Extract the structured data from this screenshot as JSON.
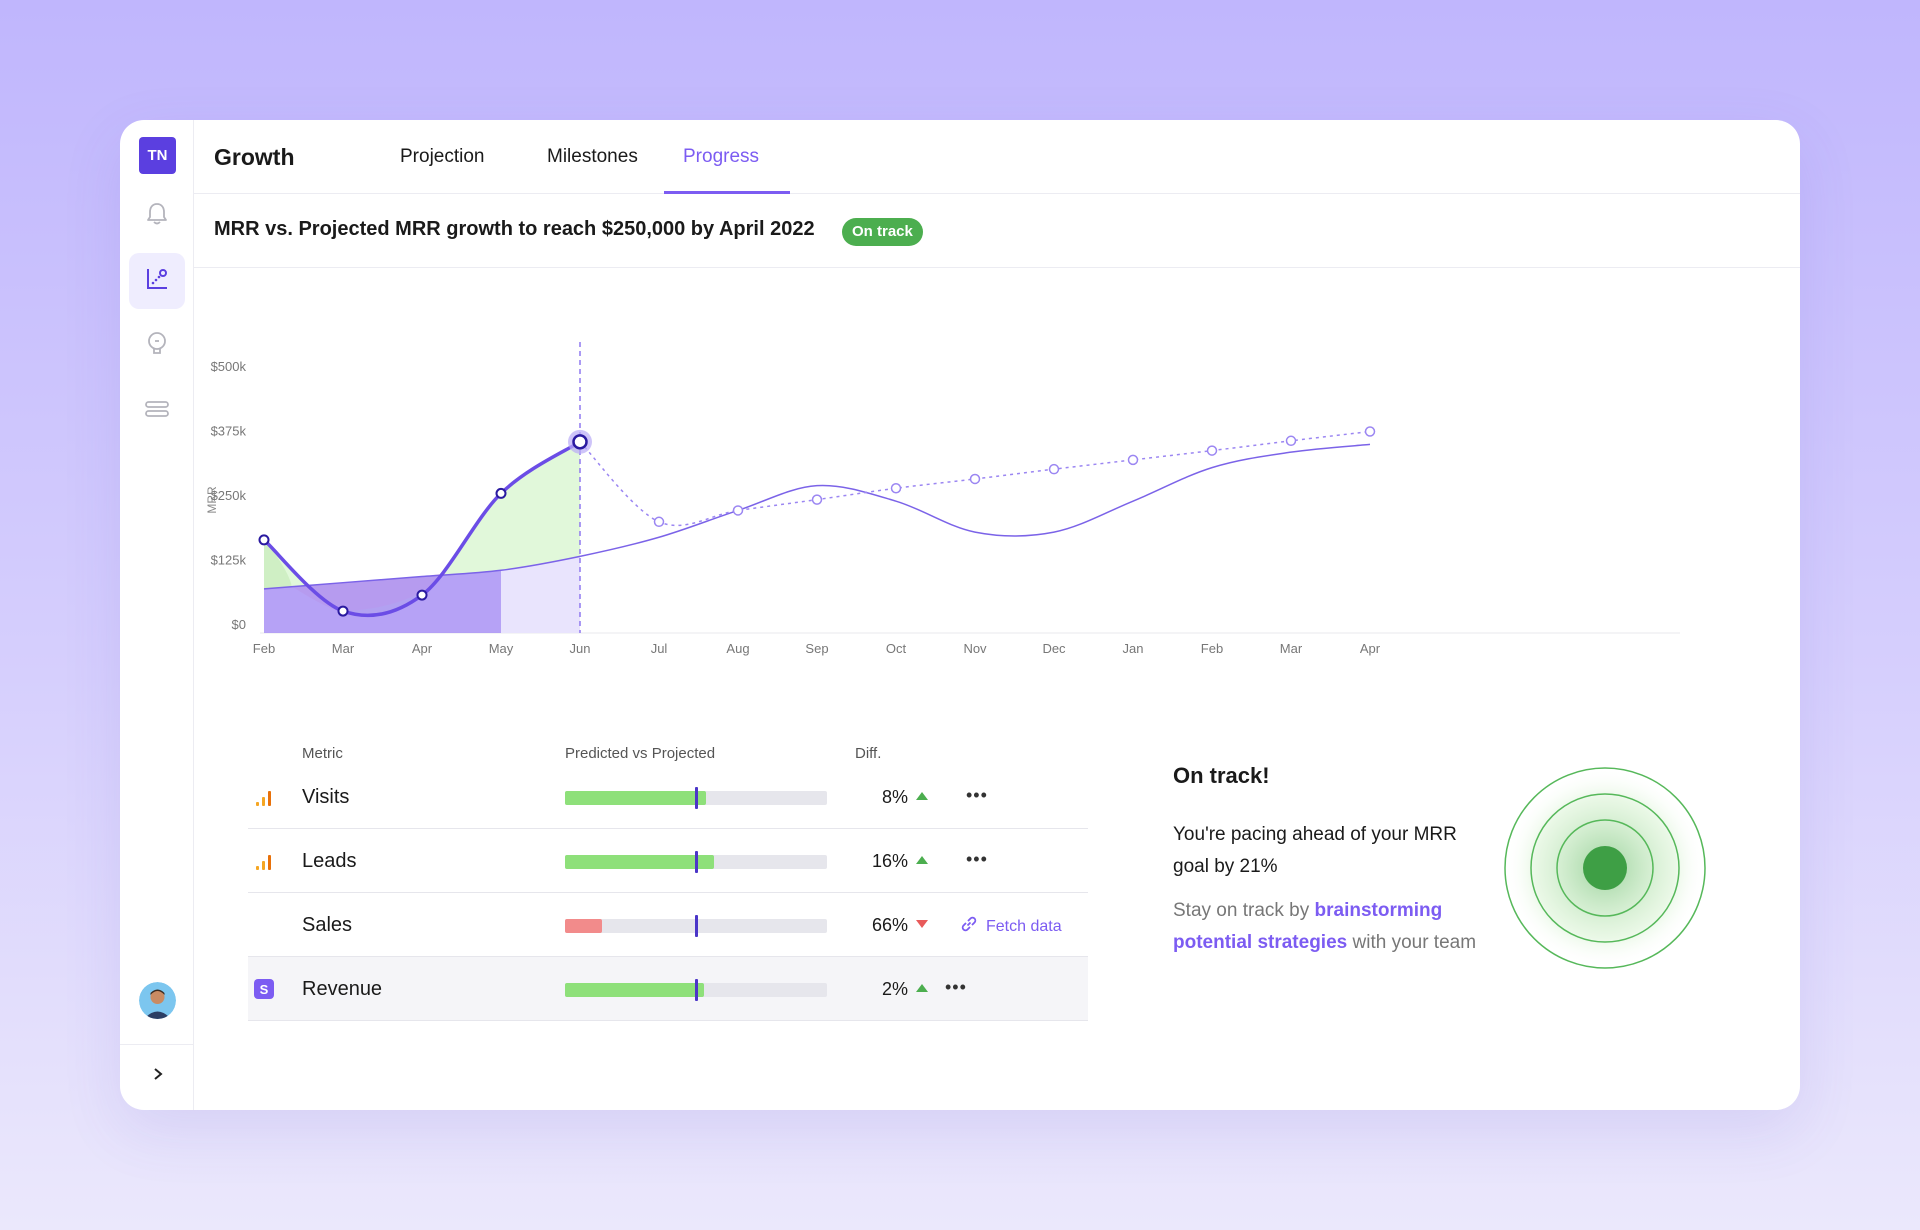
{
  "app": {
    "logo": "TN",
    "title": "Growth",
    "brand_color": "#5b3fe0",
    "accent_color": "#7c5cf2"
  },
  "tabs": [
    {
      "label": "Projection",
      "active": false
    },
    {
      "label": "Milestones",
      "active": false
    },
    {
      "label": "Progress",
      "active": true
    }
  ],
  "rail": {
    "items": [
      {
        "icon": "bell-icon",
        "active": false
      },
      {
        "icon": "chart-icon",
        "active": true
      },
      {
        "icon": "lightbulb-icon",
        "active": false
      },
      {
        "icon": "list-icon",
        "active": false
      }
    ],
    "avatar": "avatar",
    "expand_icon": "chevron-right-icon"
  },
  "header": {
    "title": "MRR vs. Projected MRR growth to reach $250,000 by April 2022",
    "badge": "On track",
    "badge_color": "#4cae4f"
  },
  "chart_data": {
    "type": "line",
    "ylabel": "MRR",
    "ylim": [
      0,
      500000
    ],
    "yticks": [
      "$500k",
      "$375k",
      "$250k",
      "$125k",
      "$0"
    ],
    "categories": [
      "Feb",
      "Mar",
      "Apr",
      "May",
      "Jun",
      "Jul",
      "Aug",
      "Sep",
      "Oct",
      "Nov",
      "Dec",
      "Jan",
      "Feb",
      "Mar",
      "Apr"
    ],
    "highlight_category": "Jun",
    "series": [
      {
        "values": [
          165000,
          27000,
          58000,
          255000,
          355000,
          null,
          null,
          null,
          null,
          null,
          null,
          null,
          null,
          null,
          null
        ],
        "color": "#6b4de6"
      },
      {
        "values": [
          null,
          null,
          null,
          null,
          355000,
          200000,
          222000,
          243000,
          265000,
          283000,
          302000,
          320000,
          338000,
          357000,
          375000
        ],
        "color": "#9b86f2"
      },
      {
        "values": [
          70000,
          82000,
          94000,
          106000,
          133000,
          170000,
          222000,
          270000,
          240000,
          180000,
          180000,
          240000,
          305000,
          335000,
          350000
        ],
        "color": "#7b63e8"
      }
    ]
  },
  "table": {
    "headers": {
      "metric": "Metric",
      "predicted": "Predicted vs Projected",
      "diff": "Diff."
    },
    "rows": [
      {
        "icon": "analytics-bars-icon",
        "name": "Visits",
        "fill": 0.54,
        "fill_color": "#8ee07a",
        "diff": "8%",
        "trend": "up",
        "action": "more"
      },
      {
        "icon": "analytics-bars-icon",
        "name": "Leads",
        "fill": 0.57,
        "fill_color": "#8ee07a",
        "diff": "16%",
        "trend": "up",
        "action": "more"
      },
      {
        "icon": "",
        "name": "Sales",
        "fill": 0.14,
        "fill_color": "#f28b8b",
        "diff": "66%",
        "trend": "down",
        "action": "Fetch data"
      },
      {
        "icon": "stripe-icon",
        "name": "Revenue",
        "fill": 0.53,
        "fill_color": "#8ee07a",
        "diff": "2%",
        "trend": "up",
        "action": "more"
      }
    ]
  },
  "info": {
    "title": "On track!",
    "text1": "You're pacing ahead of your MRR goal by 21%",
    "text2_before": "Stay on track by ",
    "text2_link": "brainstorming potential strategies",
    "text2_after": " with your team"
  }
}
